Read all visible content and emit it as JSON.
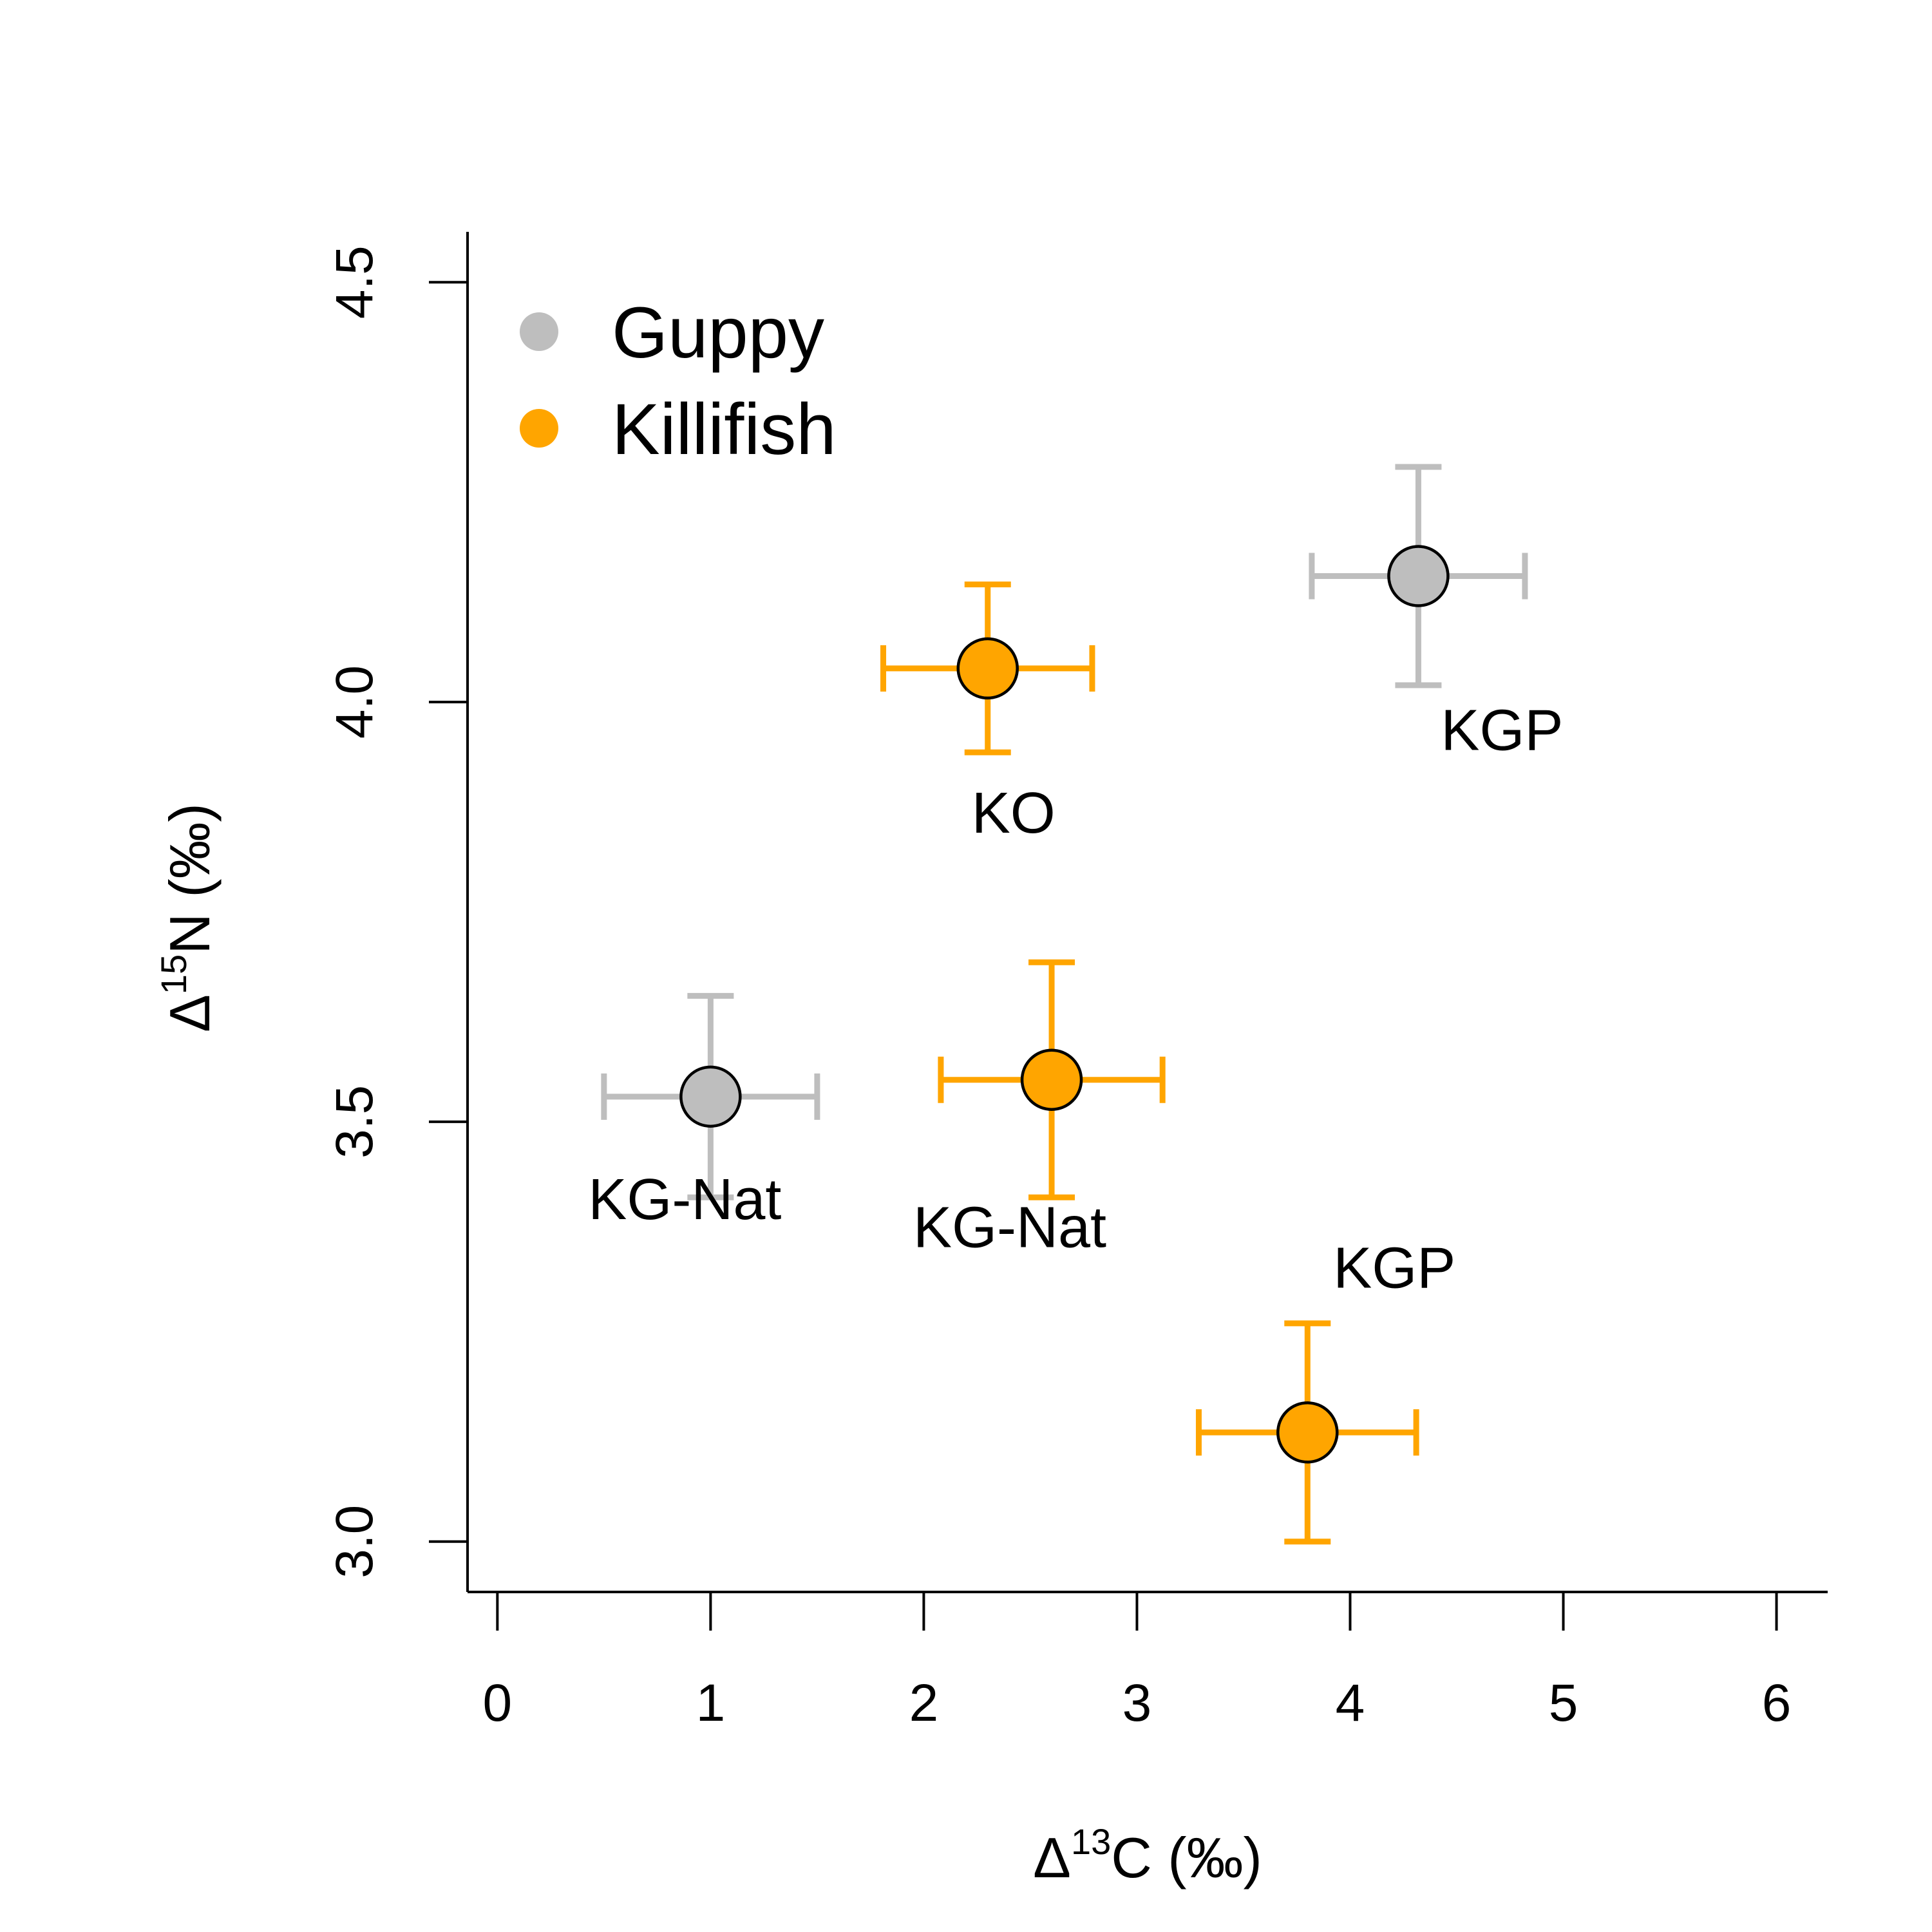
{
  "chart_data": {
    "type": "scatter",
    "xlabel": {
      "prefix": "Δ",
      "sup": "13",
      "suffix": "C (‰)"
    },
    "ylabel": {
      "prefix": "Δ",
      "sup": "15",
      "suffix": "N (‰)"
    },
    "xlim": [
      -0.14,
      6.24
    ],
    "ylim": [
      2.94,
      4.56
    ],
    "xticks": [
      0,
      1,
      2,
      3,
      4,
      5,
      6
    ],
    "xtick_labels": [
      "0",
      "1",
      "2",
      "3",
      "4",
      "5",
      "6"
    ],
    "yticks": [
      3.0,
      3.5,
      4.0,
      4.5
    ],
    "ytick_labels": [
      "3.0",
      "3.5",
      "4.0",
      "4.5"
    ],
    "legend_position": "top-left",
    "series": [
      {
        "name": "Guppy",
        "color": "#bebebe",
        "points": [
          {
            "x": 1.0,
            "y": 3.53,
            "xerr": 0.5,
            "yerr": 0.12,
            "label": "KG-Nat"
          },
          {
            "x": 4.32,
            "y": 4.15,
            "xerr": 0.5,
            "yerr": 0.13,
            "label": "KGP"
          }
        ]
      },
      {
        "name": "Killifish",
        "color": "#ffa500",
        "points": [
          {
            "x": 2.3,
            "y": 4.04,
            "xerr": 0.49,
            "yerr": 0.1,
            "label": "KO"
          },
          {
            "x": 2.6,
            "y": 3.55,
            "xerr": 0.52,
            "yerr": 0.14,
            "label": "KG-Nat"
          },
          {
            "x": 3.8,
            "y": 3.13,
            "xerr": 0.51,
            "yerr": 0.13,
            "label": "KGP"
          }
        ]
      }
    ]
  }
}
